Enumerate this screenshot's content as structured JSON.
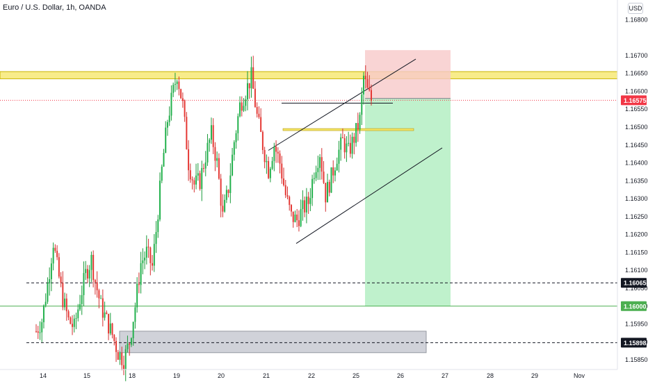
{
  "chart_data": {
    "type": "candlestick",
    "title": "Euro / U.S. Dollar, 1h, OANDA",
    "currency_label": "USD",
    "x_tick_labels": [
      "14",
      "15",
      "18",
      "19",
      "20",
      "21",
      "22",
      "25",
      "26",
      "27",
      "28",
      "29",
      "Nov"
    ],
    "y_tick_labels": [
      "1.16800",
      "1.16700",
      "1.16650",
      "1.16600",
      "1.16550",
      "1.16500",
      "1.16450",
      "1.16400",
      "1.16350",
      "1.16300",
      "1.16250",
      "1.16200",
      "1.16150",
      "1.16100",
      "1.16050",
      "1.16000",
      "1.15950",
      "1.15900",
      "1.15850"
    ],
    "ylim": [
      1.15823,
      1.16855
    ],
    "price_labels": [
      {
        "value": "1.16575",
        "price": 1.16575,
        "color": "#f23645"
      },
      {
        "value": "1.16065",
        "price": 1.16065,
        "color": "#131722"
      },
      {
        "value": "1.16000",
        "price": 1.16,
        "color": "#4caf50"
      },
      {
        "value": "1.15898",
        "price": 1.15898,
        "color": "#131722"
      }
    ],
    "annotations": {
      "resistance_zone": {
        "price_high": 1.16655,
        "price_low": 1.16635,
        "color": "#f5e663"
      },
      "demand_zone": {
        "price_high": 1.1593,
        "price_low": 1.1587,
        "color": "#c8cad2"
      },
      "short_position": {
        "entry": 1.1658,
        "stop": 1.16715,
        "target": 1.16,
        "profit_color": "#b8efc6",
        "loss_color": "#f8c9c9"
      },
      "dashed_levels": [
        1.16065,
        1.15898
      ],
      "current_price": 1.16575
    },
    "series": [
      {
        "name": "EURUSD",
        "approx_path": [
          [
            0,
            1.1593
          ],
          [
            3,
            1.1596
          ],
          [
            6,
            1.1606
          ],
          [
            9,
            1.1618
          ],
          [
            11,
            1.1611
          ],
          [
            14,
            1.1602
          ],
          [
            17,
            1.1596
          ],
          [
            20,
            1.1594
          ],
          [
            23,
            1.1602
          ],
          [
            26,
            1.1609
          ],
          [
            29,
            1.1613
          ],
          [
            31,
            1.1607
          ],
          [
            34,
            1.16
          ],
          [
            37,
            1.1596
          ],
          [
            40,
            1.1592
          ],
          [
            43,
            1.1587
          ],
          [
            46,
            1.1585
          ],
          [
            49,
            1.159
          ],
          [
            52,
            1.16
          ],
          [
            55,
            1.1612
          ],
          [
            58,
            1.1615
          ],
          [
            61,
            1.1611
          ],
          [
            63,
            1.1621
          ],
          [
            66,
            1.1638
          ],
          [
            69,
            1.1652
          ],
          [
            72,
            1.166
          ],
          [
            74,
            1.1665
          ],
          [
            77,
            1.1656
          ],
          [
            80,
            1.164
          ],
          [
            83,
            1.1634
          ],
          [
            86,
            1.1635
          ],
          [
            89,
            1.1642
          ],
          [
            92,
            1.1648
          ],
          [
            95,
            1.164
          ],
          [
            98,
            1.1625
          ],
          [
            101,
            1.1633
          ],
          [
            104,
            1.1646
          ],
          [
            107,
            1.1656
          ],
          [
            110,
            1.166
          ],
          [
            113,
            1.1664
          ],
          [
            116,
            1.1653
          ],
          [
            119,
            1.1645
          ],
          [
            122,
            1.1638
          ],
          [
            125,
            1.1645
          ],
          [
            128,
            1.164
          ],
          [
            131,
            1.1631
          ],
          [
            134,
            1.1625
          ],
          [
            137,
            1.1624
          ],
          [
            140,
            1.1627
          ],
          [
            143,
            1.1629
          ],
          [
            146,
            1.1638
          ],
          [
            149,
            1.1643
          ],
          [
            152,
            1.1631
          ],
          [
            155,
            1.1636
          ],
          [
            158,
            1.1642
          ],
          [
            161,
            1.1646
          ],
          [
            164,
            1.1643
          ],
          [
            167,
            1.1647
          ],
          [
            170,
            1.1652
          ],
          [
            172,
            1.1664
          ],
          [
            174,
            1.166
          ],
          [
            176,
            1.16575
          ]
        ]
      }
    ]
  }
}
